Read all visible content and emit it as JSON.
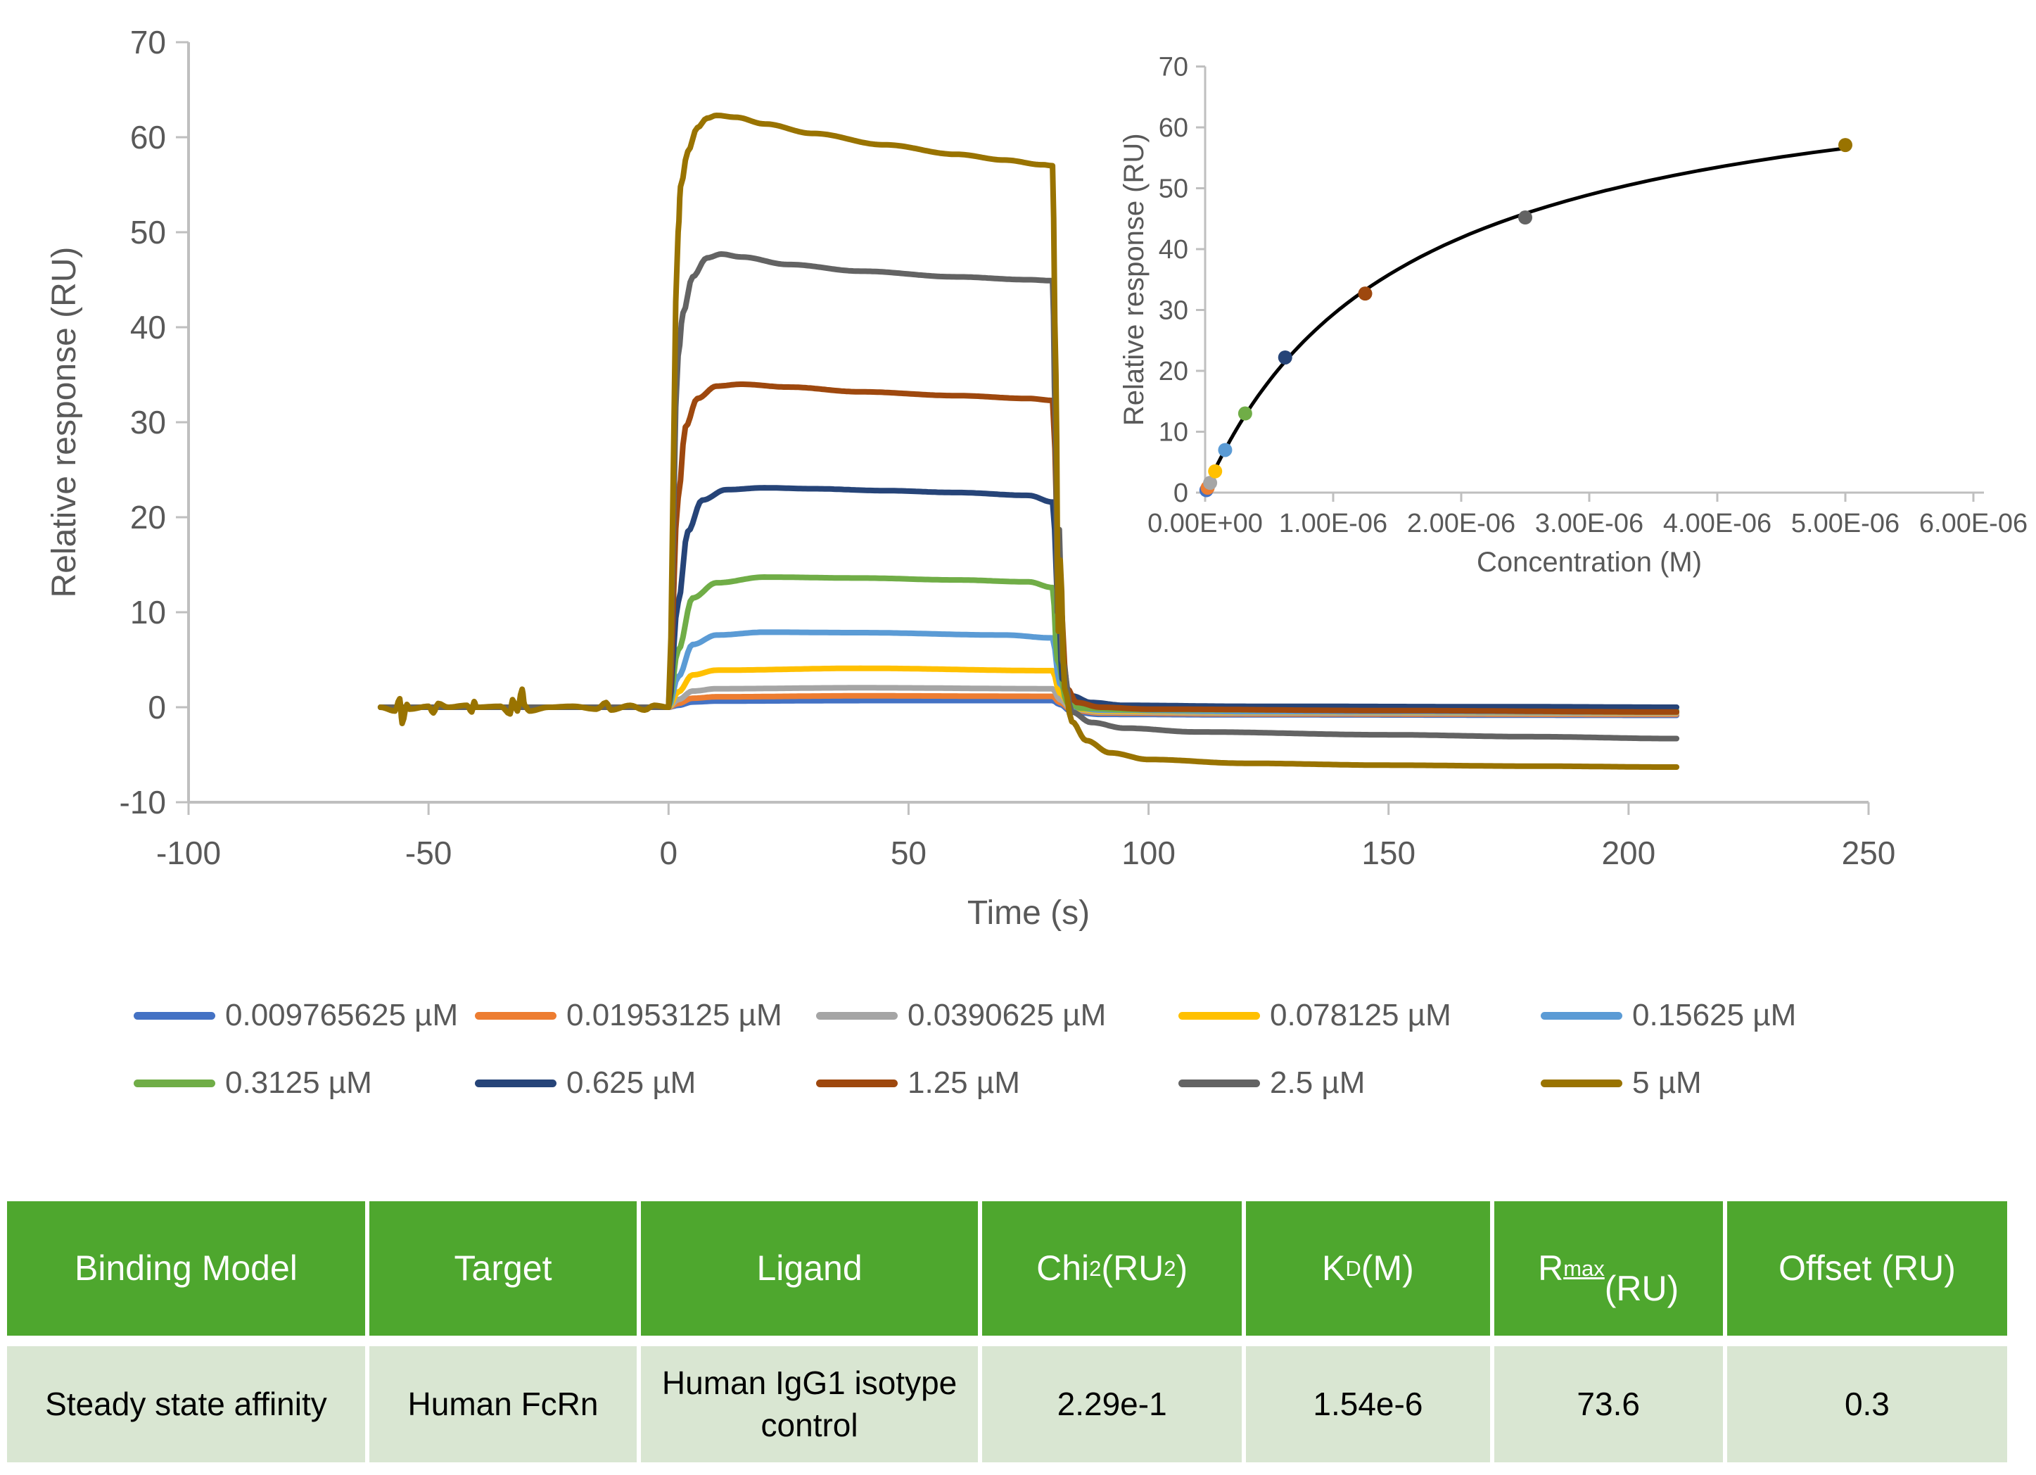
{
  "accent_colors": {
    "table_header_green": "#4EA72E",
    "table_row_green": "#D9E6D2",
    "axis_line": "#BFBFBF",
    "axis_text": "#595959",
    "fit_line": "#000000"
  },
  "chart_data": [
    {
      "type": "line",
      "name": "sensorgram",
      "title": "",
      "xlabel": "Time (s)",
      "ylabel": "Relative response (RU)",
      "xlim": [
        -100,
        250
      ],
      "ylim": [
        -10,
        70
      ],
      "xticks": [
        -100,
        -50,
        0,
        50,
        100,
        150,
        200,
        250
      ],
      "yticks": [
        -10,
        0,
        10,
        20,
        30,
        40,
        50,
        60,
        70
      ],
      "grid": false,
      "legend_position": "bottom",
      "series": [
        {
          "name": "0.009765625 µM",
          "color": "#4472C4",
          "points": [
            [
              -60,
              0
            ],
            [
              0,
              0
            ],
            [
              2,
              0.2
            ],
            [
              5,
              0.55
            ],
            [
              10,
              0.65
            ],
            [
              40,
              0.7
            ],
            [
              80,
              0.7
            ],
            [
              81.5,
              0.3
            ],
            [
              84,
              -0.5
            ],
            [
              90,
              -0.75
            ],
            [
              120,
              -0.8
            ],
            [
              210,
              -0.85
            ]
          ]
        },
        {
          "name": "0.01953125 µM",
          "color": "#ED7D31",
          "points": [
            [
              -60,
              0
            ],
            [
              0,
              0
            ],
            [
              2,
              0.4
            ],
            [
              5,
              0.95
            ],
            [
              10,
              1.1
            ],
            [
              40,
              1.2
            ],
            [
              80,
              1.15
            ],
            [
              81.5,
              0.5
            ],
            [
              84,
              -0.3
            ],
            [
              90,
              -0.6
            ],
            [
              120,
              -0.7
            ],
            [
              210,
              -0.75
            ]
          ]
        },
        {
          "name": "0.0390625 µM",
          "color": "#A5A5A5",
          "points": [
            [
              -60,
              0
            ],
            [
              0,
              0
            ],
            [
              2,
              0.8
            ],
            [
              5,
              1.7
            ],
            [
              10,
              1.95
            ],
            [
              40,
              2.05
            ],
            [
              80,
              1.95
            ],
            [
              81.5,
              0.8
            ],
            [
              84,
              -0.2
            ],
            [
              90,
              -0.5
            ],
            [
              120,
              -0.6
            ],
            [
              210,
              -0.65
            ]
          ]
        },
        {
          "name": "0.078125 µM",
          "color": "#FFC000",
          "points": [
            [
              -60,
              0
            ],
            [
              0,
              0
            ],
            [
              2,
              1.6
            ],
            [
              5,
              3.4
            ],
            [
              10,
              3.9
            ],
            [
              40,
              4.1
            ],
            [
              80,
              3.85
            ],
            [
              81.5,
              1.5
            ],
            [
              84,
              -0.1
            ],
            [
              90,
              -0.4
            ],
            [
              120,
              -0.5
            ],
            [
              210,
              -0.55
            ]
          ]
        },
        {
          "name": "0.15625 µM",
          "color": "#5B9BD5",
          "points": [
            [
              -60,
              0
            ],
            [
              0,
              0
            ],
            [
              2,
              3.2
            ],
            [
              5,
              6.6
            ],
            [
              10,
              7.6
            ],
            [
              20,
              7.9
            ],
            [
              40,
              7.85
            ],
            [
              70,
              7.6
            ],
            [
              80,
              7.3
            ],
            [
              81.5,
              2.5
            ],
            [
              84,
              0
            ],
            [
              90,
              -0.3
            ],
            [
              120,
              -0.45
            ],
            [
              210,
              -0.5
            ]
          ]
        },
        {
          "name": "0.3125 µM",
          "color": "#70AD47",
          "points": [
            [
              -60,
              0
            ],
            [
              0,
              0
            ],
            [
              2,
              6
            ],
            [
              5,
              11.5
            ],
            [
              10,
              13.1
            ],
            [
              20,
              13.7
            ],
            [
              40,
              13.6
            ],
            [
              60,
              13.4
            ],
            [
              75,
              13.2
            ],
            [
              80,
              12.6
            ],
            [
              81,
              5
            ],
            [
              83,
              0.5
            ],
            [
              86,
              -0.1
            ],
            [
              95,
              -0.25
            ],
            [
              150,
              -0.3
            ],
            [
              210,
              -0.35
            ]
          ]
        },
        {
          "name": "0.625 µM",
          "color": "#264478",
          "points": [
            [
              -60,
              0
            ],
            [
              0,
              0
            ],
            [
              2,
              11
            ],
            [
              4,
              18.5
            ],
            [
              7,
              21.8
            ],
            [
              12,
              22.9
            ],
            [
              20,
              23.1
            ],
            [
              30,
              23.0
            ],
            [
              45,
              22.8
            ],
            [
              60,
              22.6
            ],
            [
              75,
              22.3
            ],
            [
              80,
              21.6
            ],
            [
              81.3,
              10
            ],
            [
              82,
              3
            ],
            [
              84,
              1.2
            ],
            [
              88,
              0.5
            ],
            [
              95,
              0.2
            ],
            [
              120,
              0.1
            ],
            [
              180,
              0.05
            ],
            [
              210,
              0
            ]
          ]
        },
        {
          "name": "1.25 µM",
          "color": "#9E480E",
          "points": [
            [
              -60,
              0
            ],
            [
              0,
              0
            ],
            [
              2,
              22
            ],
            [
              3.5,
              29.5
            ],
            [
              6,
              32.5
            ],
            [
              10,
              33.8
            ],
            [
              15,
              34.0
            ],
            [
              25,
              33.7
            ],
            [
              40,
              33.2
            ],
            [
              60,
              32.8
            ],
            [
              75,
              32.5
            ],
            [
              80,
              32.3
            ],
            [
              81.5,
              12
            ],
            [
              83,
              2
            ],
            [
              85,
              0.5
            ],
            [
              90,
              0
            ],
            [
              100,
              -0.2
            ],
            [
              150,
              -0.35
            ],
            [
              210,
              -0.5
            ]
          ]
        },
        {
          "name": "2.5 µM",
          "color": "#636363",
          "points": [
            [
              -60,
              0
            ],
            [
              0,
              0
            ],
            [
              2,
              37
            ],
            [
              3,
              41.5
            ],
            [
              5,
              45.3
            ],
            [
              8,
              47.3
            ],
            [
              11,
              47.7
            ],
            [
              15,
              47.4
            ],
            [
              25,
              46.6
            ],
            [
              40,
              45.9
            ],
            [
              60,
              45.3
            ],
            [
              75,
              45.0
            ],
            [
              80,
              44.9
            ],
            [
              80.6,
              30
            ],
            [
              81,
              10
            ],
            [
              81.4,
              18.7
            ],
            [
              82,
              5
            ],
            [
              84,
              -0.5
            ],
            [
              88,
              -1.6
            ],
            [
              95,
              -2.2
            ],
            [
              110,
              -2.6
            ],
            [
              150,
              -2.9
            ],
            [
              180,
              -3.1
            ],
            [
              210,
              -3.3
            ]
          ]
        },
        {
          "name": "5 µM",
          "color": "#997300",
          "points": [
            [
              -60,
              0
            ],
            [
              -57,
              -0.4
            ],
            [
              -56,
              0.9
            ],
            [
              -55.5,
              -1.7
            ],
            [
              -54.5,
              0.3
            ],
            [
              -54,
              -0.2
            ],
            [
              -50,
              0.1
            ],
            [
              -49,
              -0.6
            ],
            [
              -48,
              0.4
            ],
            [
              -46,
              0
            ],
            [
              -42,
              0.2
            ],
            [
              -41,
              -0.5
            ],
            [
              -40.5,
              0.6
            ],
            [
              -40,
              0
            ],
            [
              -35,
              0.1
            ],
            [
              -33,
              -0.7
            ],
            [
              -32.5,
              0.8
            ],
            [
              -31.5,
              -0.4
            ],
            [
              -30.5,
              1.9
            ],
            [
              -30,
              0.2
            ],
            [
              -29,
              -0.4
            ],
            [
              -25,
              0
            ],
            [
              -20,
              0.1
            ],
            [
              -15,
              -0.2
            ],
            [
              -13,
              0.5
            ],
            [
              -12,
              -0.3
            ],
            [
              -8,
              0.2
            ],
            [
              -5,
              -0.3
            ],
            [
              -3,
              0.2
            ],
            [
              0,
              0
            ],
            [
              2,
              50
            ],
            [
              2.5,
              54.8
            ],
            [
              4,
              58.5
            ],
            [
              6,
              61.0
            ],
            [
              8,
              62.0
            ],
            [
              10,
              62.3
            ],
            [
              14,
              62.1
            ],
            [
              20,
              61.4
            ],
            [
              30,
              60.4
            ],
            [
              45,
              59.2
            ],
            [
              60,
              58.2
            ],
            [
              70,
              57.6
            ],
            [
              78,
              57.1
            ],
            [
              80,
              57.0
            ],
            [
              80.7,
              35
            ],
            [
              81.2,
              8
            ],
            [
              81.6,
              15.5
            ],
            [
              82.5,
              2
            ],
            [
              84,
              -1.5
            ],
            [
              87,
              -3.5
            ],
            [
              92,
              -4.8
            ],
            [
              100,
              -5.5
            ],
            [
              120,
              -5.9
            ],
            [
              150,
              -6.1
            ],
            [
              180,
              -6.2
            ],
            [
              210,
              -6.3
            ]
          ]
        }
      ]
    },
    {
      "type": "scatter",
      "name": "steady-state-affinity",
      "title": "",
      "xlabel": "Concentration (M)",
      "ylabel": "Relative response (RU)",
      "xlim": [
        0,
        6.2e-06
      ],
      "ylim": [
        0,
        70
      ],
      "xtick_values": [
        0,
        1e-06,
        2e-06,
        3e-06,
        4e-06,
        5e-06,
        6e-06
      ],
      "xtick_labels": [
        "0.00E+00",
        "1.00E-06",
        "2.00E-06",
        "3.00E-06",
        "4.00E-06",
        "5.00E-06",
        "6.00E-06"
      ],
      "yticks": [
        0,
        10,
        20,
        30,
        40,
        50,
        60,
        70
      ],
      "grid": false,
      "points": [
        {
          "x": 9.765625e-09,
          "y": 0.4,
          "color": "#4472C4"
        },
        {
          "x": 1.953125e-08,
          "y": 0.8,
          "color": "#ED7D31"
        },
        {
          "x": 3.90625e-08,
          "y": 1.6,
          "color": "#A5A5A5"
        },
        {
          "x": 7.8125e-08,
          "y": 3.5,
          "color": "#FFC000"
        },
        {
          "x": 1.5625e-07,
          "y": 7.0,
          "color": "#5B9BD5"
        },
        {
          "x": 3.125e-07,
          "y": 13.0,
          "color": "#70AD47"
        },
        {
          "x": 6.25e-07,
          "y": 22.2,
          "color": "#264478"
        },
        {
          "x": 1.25e-06,
          "y": 32.7,
          "color": "#9E480E"
        },
        {
          "x": 2.5e-06,
          "y": 45.2,
          "color": "#636363"
        },
        {
          "x": 5e-06,
          "y": 57.1,
          "color": "#997300"
        }
      ],
      "fit": {
        "model": "steady-state",
        "rmax": 73.6,
        "kd": 1.54e-06,
        "offset": 0.3,
        "x_min": 9.765625e-09,
        "x_max": 5e-06,
        "color": "#000000"
      }
    }
  ],
  "legend": {
    "items": [
      {
        "label": "0.009765625 µM",
        "color": "#4472C4"
      },
      {
        "label": "0.01953125 µM",
        "color": "#ED7D31"
      },
      {
        "label": "0.0390625 µM",
        "color": "#A5A5A5"
      },
      {
        "label": "0.078125 µM",
        "color": "#FFC000"
      },
      {
        "label": "0.15625 µM",
        "color": "#5B9BD5"
      },
      {
        "label": "0.3125 µM",
        "color": "#70AD47"
      },
      {
        "label": "0.625 µM",
        "color": "#264478"
      },
      {
        "label": "1.25 µM",
        "color": "#9E480E"
      },
      {
        "label": "2.5 µM",
        "color": "#636363"
      },
      {
        "label": "5 µM",
        "color": "#997300"
      }
    ]
  },
  "table": {
    "columns": [
      {
        "header": "Binding Model",
        "value": "Steady state affinity"
      },
      {
        "header": "Target",
        "value": "Human FcRn"
      },
      {
        "header": "Ligand",
        "value": "Human IgG1 isotype control"
      },
      {
        "header": "Chi^{2} (RU^{2})",
        "value": "2.29e-1"
      },
      {
        "header": "K_{D} (M)",
        "value": "1.54e-6"
      },
      {
        "header": "R~{max}\n(RU)",
        "value": "73.6"
      },
      {
        "header": "Offset (RU)",
        "value": "0.3"
      }
    ]
  }
}
